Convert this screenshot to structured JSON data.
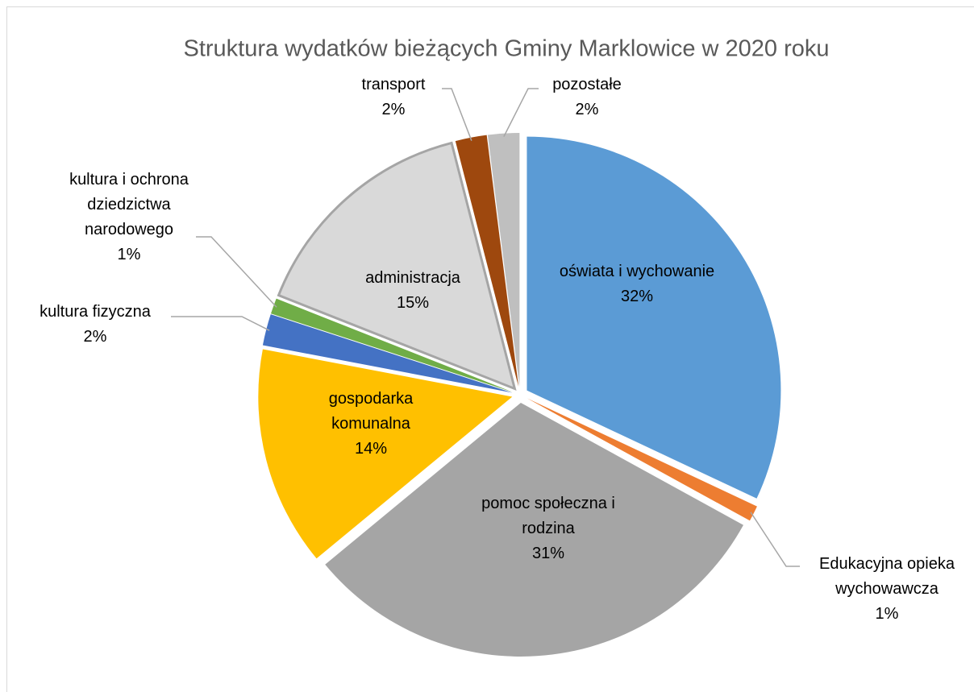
{
  "chart_data": {
    "type": "pie",
    "title": "Struktura wydatków bieżących Gminy Marklowice w 2020 roku",
    "categories": [
      "oświata i wychowanie",
      "Edukacyjna opieka wychowawcza",
      "pomoc społeczna i rodzina",
      "gospodarka komunalna",
      "kultura fizyczna",
      "kultura i ochrona dziedzictwa narodowego",
      "administracja",
      "transport",
      "pozostałe"
    ],
    "values": [
      32,
      1,
      31,
      14,
      2,
      1,
      15,
      2,
      2
    ],
    "value_labels": [
      "32%",
      "1%",
      "31%",
      "14%",
      "2%",
      "1%",
      "15%",
      "2%",
      "2%"
    ],
    "colors": [
      "#5b9bd5",
      "#ed7d31",
      "#a5a5a5",
      "#ffc000",
      "#4472c4",
      "#70ad47",
      "#d9d9d9",
      "#9e480e",
      "#bfbfbf"
    ]
  }
}
